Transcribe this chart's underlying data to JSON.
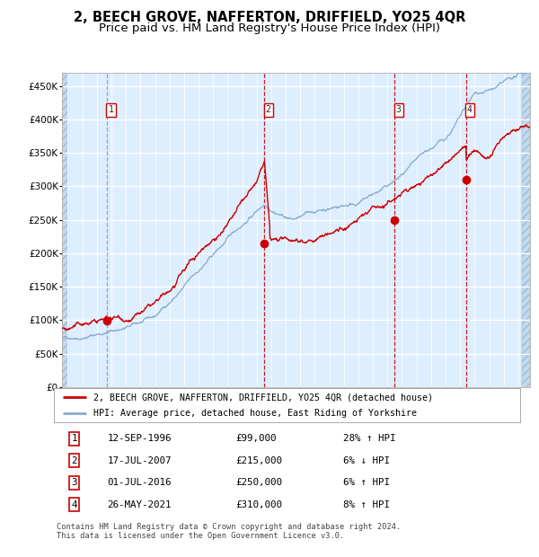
{
  "title": "2, BEECH GROVE, NAFFERTON, DRIFFIELD, YO25 4QR",
  "subtitle": "Price paid vs. HM Land Registry's House Price Index (HPI)",
  "title_fontsize": 10.5,
  "subtitle_fontsize": 9.5,
  "bg_color": "#ddeeff",
  "grid_color": "#ffffff",
  "red_line_color": "#cc0000",
  "blue_line_color": "#88aacc",
  "sale_marker_color": "#cc0000",
  "ylim": [
    0,
    470000
  ],
  "yticks": [
    0,
    50000,
    100000,
    150000,
    200000,
    250000,
    300000,
    350000,
    400000,
    450000
  ],
  "ytick_labels": [
    "£0",
    "£50K",
    "£100K",
    "£150K",
    "£200K",
    "£250K",
    "£300K",
    "£350K",
    "£400K",
    "£450K"
  ],
  "sale_dates": [
    1996.71,
    2007.54,
    2016.5,
    2021.4
  ],
  "sale_prices": [
    99000,
    215000,
    250000,
    310000
  ],
  "sale_labels": [
    "1",
    "2",
    "3",
    "4"
  ],
  "sale_vline_colors": [
    "#999999",
    "#cc0000",
    "#cc0000",
    "#cc0000"
  ],
  "legend_label_red": "2, BEECH GROVE, NAFFERTON, DRIFFIELD, YO25 4QR (detached house)",
  "legend_label_blue": "HPI: Average price, detached house, East Riding of Yorkshire",
  "table_rows": [
    {
      "num": "1",
      "date": "12-SEP-1996",
      "price": "£99,000",
      "hpi": "28% ↑ HPI"
    },
    {
      "num": "2",
      "date": "17-JUL-2007",
      "price": "£215,000",
      "hpi": "6% ↓ HPI"
    },
    {
      "num": "3",
      "date": "01-JUL-2016",
      "price": "£250,000",
      "hpi": "6% ↑ HPI"
    },
    {
      "num": "4",
      "date": "26-MAY-2021",
      "price": "£310,000",
      "hpi": "8% ↑ HPI"
    }
  ],
  "footer": "Contains HM Land Registry data © Crown copyright and database right 2024.\nThis data is licensed under the Open Government Licence v3.0.",
  "xlim_start": 1993.6,
  "xlim_end": 2025.8
}
